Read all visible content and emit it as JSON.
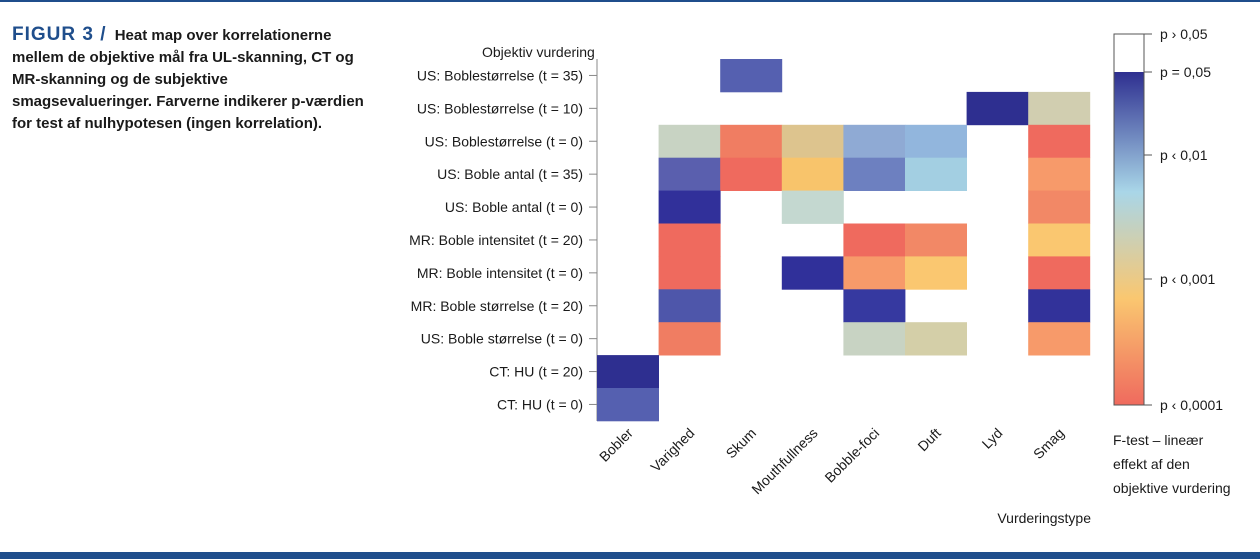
{
  "caption": {
    "figure_label": "FIGUR 3 /",
    "text": "Heat map over korrelationerne mellem de objektive mål fra UL-skanning, CT og MR-skanning og de subjektive smagsevalueringer. Farverne indikerer p-værdien for test af nulhypotesen (ingen korrelation)."
  },
  "chart_data": {
    "type": "heatmap",
    "y_title": "Objektiv vurdering",
    "x_title": "Vurderingstype",
    "rows": [
      "US: Boblestørrelse (t = 35)",
      "US: Boblestørrelse (t = 10)",
      "US: Boblestørrelse (t = 0)",
      "US: Boble antal (t = 35)",
      "US: Boble antal (t = 0)",
      "MR: Boble intensitet (t = 20)",
      "MR: Boble intensitet (t = 0)",
      "MR: Boble størrelse (t = 20)",
      "US: Boble størrelse (t = 0)",
      "CT: HU (t = 20)",
      "CT: HU (t = 0)"
    ],
    "columns": [
      "Bobler",
      "Varighed",
      "Skum",
      "Mouthfullness",
      "Bobble-foci",
      "Duft",
      "Lyd",
      "Smag"
    ],
    "cells": [
      [
        null,
        null,
        "#5560b0",
        null,
        null,
        null,
        null,
        null
      ],
      [
        null,
        null,
        null,
        null,
        null,
        null,
        "#2e2f90",
        "#d1ceb0"
      ],
      [
        null,
        "#c8d3c3",
        "#f07d62",
        "#ddc48e",
        "#8faad4",
        "#92b6dd",
        null,
        "#ef6a5e"
      ],
      [
        null,
        "#5a5fae",
        "#ef6a5e",
        "#f8c46b",
        "#6d80c0",
        "#a3cfe2",
        null,
        "#f79a6a"
      ],
      [
        null,
        "#31309a",
        null,
        "#c4d8d0",
        null,
        null,
        null,
        "#f28866"
      ],
      [
        null,
        "#ef6a5e",
        null,
        null,
        "#ef6a5e",
        "#f28866",
        null,
        "#fac770"
      ],
      [
        null,
        "#ef6a5e",
        null,
        "#30309a",
        "#f79a6a",
        "#fac770",
        null,
        "#ef6a5e"
      ],
      [
        null,
        "#4e56aa",
        null,
        null,
        "#3639a0",
        null,
        null,
        "#32329a"
      ],
      [
        null,
        "#f07d62",
        null,
        null,
        "#c8d3c3",
        "#d4cfa8",
        null,
        "#f79a6a"
      ],
      [
        "#2e2f90",
        null,
        null,
        null,
        null,
        null,
        null,
        null
      ],
      [
        "#5560b0",
        null,
        null,
        null,
        null,
        null,
        null,
        null
      ]
    ],
    "colorbar": {
      "labels": [
        "p › 0,05",
        "p = 0,05",
        "p ‹ 0,01",
        "p ‹ 0,001",
        "p ‹ 0,0001"
      ],
      "stops": [
        "#ffffff",
        "#2e2f90",
        "#a9d6e8",
        "#fac770",
        "#ef6a5e"
      ],
      "title": "F-test – lineær effekt af den objektive vurdering"
    }
  }
}
